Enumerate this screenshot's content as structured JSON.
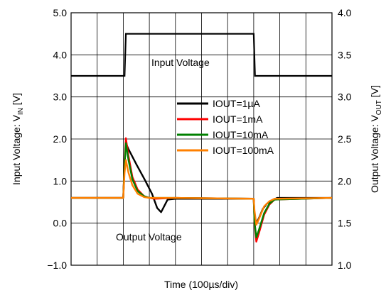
{
  "chart_data": {
    "type": "line",
    "xlabel": "Time (100µs/div)",
    "ylabel_left": "Input Voltage: V_IN [V]",
    "ylabel_right": "Output Voltage: V_OUT [V]",
    "ylabel_left_main": "Input Voltage: V",
    "ylabel_left_sub": "IN",
    "ylabel_left_unit": " [V]",
    "ylabel_right_main": "Output Voltage: V",
    "ylabel_right_sub": "OUT",
    "ylabel_right_unit": " [V]",
    "x_divisions": 10,
    "xlim": [
      0,
      10
    ],
    "ylim_left": [
      -1.0,
      5.0
    ],
    "ylim_right": [
      1.0,
      4.0
    ],
    "left_ticks": [
      "−1.0",
      "0.0",
      "1.0",
      "2.0",
      "3.0",
      "4.0",
      "5.0"
    ],
    "right_ticks": [
      "1.0",
      "1.5",
      "2.0",
      "2.5",
      "3.0",
      "3.5",
      "4.0"
    ],
    "grid": true,
    "legend_position": "center-right",
    "annotations": {
      "input": "Input Voltage",
      "output": "Output Voltage"
    },
    "input_voltage": {
      "axis": "left",
      "color": "#000000",
      "x": [
        0,
        2.05,
        2.1,
        7.0,
        7.05,
        10
      ],
      "y": [
        3.5,
        3.5,
        4.5,
        4.5,
        3.5,
        3.5
      ]
    },
    "series": [
      {
        "name": "IOUT=1µA",
        "color": "#000000",
        "axis": "right",
        "x": [
          0,
          2.0,
          2.05,
          2.1,
          2.2,
          2.5,
          2.8,
          3.1,
          3.3,
          3.45,
          3.6,
          3.7,
          4.0,
          7.0,
          7.03,
          7.1,
          7.2,
          7.35,
          7.5,
          7.7,
          7.9,
          10
        ],
        "y": [
          1.8,
          1.8,
          2.2,
          2.45,
          2.38,
          2.2,
          2.03,
          1.85,
          1.68,
          1.63,
          1.72,
          1.78,
          1.79,
          1.79,
          1.6,
          1.5,
          1.56,
          1.67,
          1.73,
          1.77,
          1.8,
          1.8
        ]
      },
      {
        "name": "IOUT=1mA",
        "color": "#ff0000",
        "axis": "right",
        "x": [
          0,
          2.0,
          2.05,
          2.1,
          2.2,
          2.35,
          2.55,
          2.8,
          3.0,
          3.2,
          4.0,
          7.0,
          7.03,
          7.1,
          7.2,
          7.4,
          7.6,
          7.8,
          10
        ],
        "y": [
          1.8,
          1.8,
          2.25,
          2.51,
          2.3,
          2.05,
          1.9,
          1.82,
          1.8,
          1.79,
          1.8,
          1.79,
          1.5,
          1.28,
          1.38,
          1.6,
          1.72,
          1.78,
          1.8
        ]
      },
      {
        "name": "IOUT=10mA",
        "color": "#008000",
        "axis": "right",
        "x": [
          0,
          2.0,
          2.05,
          2.1,
          2.2,
          2.35,
          2.55,
          2.8,
          3.0,
          4.0,
          7.0,
          7.03,
          7.1,
          7.2,
          7.4,
          7.6,
          7.8,
          10
        ],
        "y": [
          1.8,
          1.8,
          2.2,
          2.45,
          2.25,
          2.02,
          1.88,
          1.82,
          1.8,
          1.8,
          1.79,
          1.52,
          1.33,
          1.42,
          1.62,
          1.73,
          1.78,
          1.8
        ]
      },
      {
        "name": "IOUT=100mA",
        "color": "#ff8000",
        "axis": "right",
        "x": [
          0,
          2.0,
          2.05,
          2.1,
          2.2,
          2.35,
          2.55,
          2.8,
          3.0,
          4.0,
          7.0,
          7.03,
          7.1,
          7.2,
          7.4,
          7.6,
          7.8,
          10
        ],
        "y": [
          1.8,
          1.8,
          2.1,
          2.25,
          2.1,
          1.95,
          1.85,
          1.81,
          1.8,
          1.8,
          1.79,
          1.65,
          1.48,
          1.55,
          1.7,
          1.76,
          1.79,
          1.8
        ]
      }
    ]
  }
}
